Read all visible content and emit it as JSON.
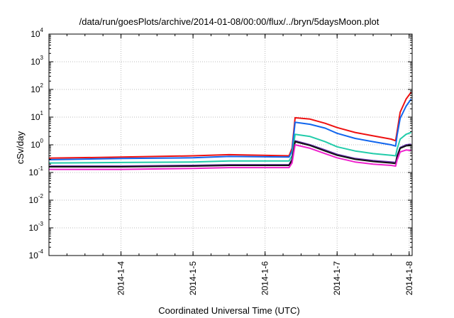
{
  "chart_data": {
    "type": "line",
    "title": "/data/run/goesPlots/archive/2014-01-08/00:00/flux/../bryn/5daysMoon.plot",
    "xlabel": "Coordinated Universal Time (UTC)",
    "ylabel": "cSv/day",
    "yscale": "log",
    "ylim": [
      0.0001,
      10000
    ],
    "ytick_base": "10",
    "ytick_exponents": [
      "-4",
      "-3",
      "-2",
      "-1",
      "0",
      "1",
      "2",
      "3",
      "4"
    ],
    "xlim": [
      "2014-01-03T00:00",
      "2014-01-08T01:00"
    ],
    "xtick_labels": [
      "2014-1-4",
      "2014-1-5",
      "2014-1-6",
      "2014-1-7",
      "2014-1-8"
    ],
    "xtick_dates": [
      "2014-01-04T00:00",
      "2014-01-05T00:00",
      "2014-01-06T00:00",
      "2014-01-07T00:00",
      "2014-01-08T00:00"
    ],
    "grid": true,
    "legend": "none",
    "series": [
      {
        "color": "#ee1111",
        "values": [
          [
            "2014-01-03T00:00",
            0.33
          ],
          [
            "2014-01-04T00:00",
            0.36
          ],
          [
            "2014-01-05T00:00",
            0.4
          ],
          [
            "2014-01-05T12:00",
            0.44
          ],
          [
            "2014-01-06T08:00",
            0.4
          ],
          [
            "2014-01-06T09:00",
            0.75
          ],
          [
            "2014-01-06T10:00",
            9.5
          ],
          [
            "2014-01-06T15:00",
            8.5
          ],
          [
            "2014-01-06T20:00",
            6.0
          ],
          [
            "2014-01-07T00:00",
            4.2
          ],
          [
            "2014-01-07T06:00",
            2.8
          ],
          [
            "2014-01-07T12:00",
            2.1
          ],
          [
            "2014-01-07T18:00",
            1.6
          ],
          [
            "2014-01-07T19:30",
            1.4
          ],
          [
            "2014-01-07T20:00",
            3.0
          ],
          [
            "2014-01-07T21:00",
            15.0
          ],
          [
            "2014-01-07T23:00",
            45.0
          ],
          [
            "2014-01-08T00:40",
            80.0
          ]
        ]
      },
      {
        "color": "#1166ee",
        "values": [
          [
            "2014-01-03T00:00",
            0.29
          ],
          [
            "2014-01-04T00:00",
            0.32
          ],
          [
            "2014-01-05T00:00",
            0.34
          ],
          [
            "2014-01-05T12:00",
            0.38
          ],
          [
            "2014-01-06T08:00",
            0.36
          ],
          [
            "2014-01-06T09:00",
            0.6
          ],
          [
            "2014-01-06T10:00",
            6.5
          ],
          [
            "2014-01-06T15:00",
            5.5
          ],
          [
            "2014-01-06T20:00",
            4.0
          ],
          [
            "2014-01-07T00:00",
            2.6
          ],
          [
            "2014-01-07T06:00",
            1.7
          ],
          [
            "2014-01-07T12:00",
            1.3
          ],
          [
            "2014-01-07T18:00",
            1.0
          ],
          [
            "2014-01-07T19:30",
            0.9
          ],
          [
            "2014-01-07T20:00",
            2.2
          ],
          [
            "2014-01-07T21:00",
            9.0
          ],
          [
            "2014-01-07T23:00",
            25.0
          ],
          [
            "2014-01-08T00:40",
            45.0
          ]
        ]
      },
      {
        "color": "#22ccaa",
        "values": [
          [
            "2014-01-03T00:00",
            0.22
          ],
          [
            "2014-01-04T00:00",
            0.23
          ],
          [
            "2014-01-05T00:00",
            0.24
          ],
          [
            "2014-01-05T12:00",
            0.26
          ],
          [
            "2014-01-06T08:00",
            0.26
          ],
          [
            "2014-01-06T09:00",
            0.4
          ],
          [
            "2014-01-06T10:00",
            2.4
          ],
          [
            "2014-01-06T15:00",
            2.0
          ],
          [
            "2014-01-06T20:00",
            1.3
          ],
          [
            "2014-01-07T00:00",
            0.85
          ],
          [
            "2014-01-07T06:00",
            0.6
          ],
          [
            "2014-01-07T12:00",
            0.48
          ],
          [
            "2014-01-07T18:00",
            0.42
          ],
          [
            "2014-01-07T19:30",
            0.4
          ],
          [
            "2014-01-07T20:00",
            0.7
          ],
          [
            "2014-01-07T21:00",
            1.6
          ],
          [
            "2014-01-07T23:00",
            2.4
          ],
          [
            "2014-01-08T00:40",
            2.8
          ]
        ]
      },
      {
        "color": "#6633aa",
        "values": [
          [
            "2014-01-03T00:00",
            0.17
          ],
          [
            "2014-01-04T00:00",
            0.17
          ],
          [
            "2014-01-05T00:00",
            0.18
          ],
          [
            "2014-01-05T12:00",
            0.19
          ],
          [
            "2014-01-06T08:00",
            0.19
          ],
          [
            "2014-01-06T09:00",
            0.3
          ],
          [
            "2014-01-06T10:00",
            1.4
          ],
          [
            "2014-01-06T15:00",
            1.0
          ],
          [
            "2014-01-06T20:00",
            0.65
          ],
          [
            "2014-01-07T00:00",
            0.45
          ],
          [
            "2014-01-07T06:00",
            0.32
          ],
          [
            "2014-01-07T12:00",
            0.27
          ],
          [
            "2014-01-07T18:00",
            0.24
          ],
          [
            "2014-01-07T19:30",
            0.23
          ],
          [
            "2014-01-07T20:00",
            0.4
          ],
          [
            "2014-01-07T21:00",
            0.8
          ],
          [
            "2014-01-07T23:00",
            1.0
          ],
          [
            "2014-01-08T00:40",
            1.05
          ]
        ]
      },
      {
        "color": "#111111",
        "values": [
          [
            "2014-01-03T00:00",
            0.16
          ],
          [
            "2014-01-04T00:00",
            0.16
          ],
          [
            "2014-01-05T00:00",
            0.17
          ],
          [
            "2014-01-05T12:00",
            0.18
          ],
          [
            "2014-01-06T08:00",
            0.18
          ],
          [
            "2014-01-06T09:00",
            0.28
          ],
          [
            "2014-01-06T10:00",
            1.3
          ],
          [
            "2014-01-06T15:00",
            0.95
          ],
          [
            "2014-01-06T20:00",
            0.6
          ],
          [
            "2014-01-07T00:00",
            0.42
          ],
          [
            "2014-01-07T06:00",
            0.3
          ],
          [
            "2014-01-07T12:00",
            0.25
          ],
          [
            "2014-01-07T18:00",
            0.22
          ],
          [
            "2014-01-07T19:30",
            0.21
          ],
          [
            "2014-01-07T20:00",
            0.36
          ],
          [
            "2014-01-07T21:00",
            0.75
          ],
          [
            "2014-01-07T23:00",
            0.92
          ],
          [
            "2014-01-08T00:40",
            0.95
          ]
        ]
      },
      {
        "color": "#ee22cc",
        "values": [
          [
            "2014-01-03T00:00",
            0.13
          ],
          [
            "2014-01-04T00:00",
            0.13
          ],
          [
            "2014-01-05T00:00",
            0.14
          ],
          [
            "2014-01-05T12:00",
            0.15
          ],
          [
            "2014-01-06T08:00",
            0.15
          ],
          [
            "2014-01-06T09:00",
            0.22
          ],
          [
            "2014-01-06T10:00",
            1.0
          ],
          [
            "2014-01-06T15:00",
            0.75
          ],
          [
            "2014-01-06T20:00",
            0.48
          ],
          [
            "2014-01-07T00:00",
            0.34
          ],
          [
            "2014-01-07T06:00",
            0.24
          ],
          [
            "2014-01-07T12:00",
            0.2
          ],
          [
            "2014-01-07T18:00",
            0.18
          ],
          [
            "2014-01-07T19:30",
            0.17
          ],
          [
            "2014-01-07T20:00",
            0.28
          ],
          [
            "2014-01-07T21:00",
            0.55
          ],
          [
            "2014-01-07T23:00",
            0.65
          ],
          [
            "2014-01-08T00:40",
            0.62
          ]
        ]
      }
    ]
  }
}
